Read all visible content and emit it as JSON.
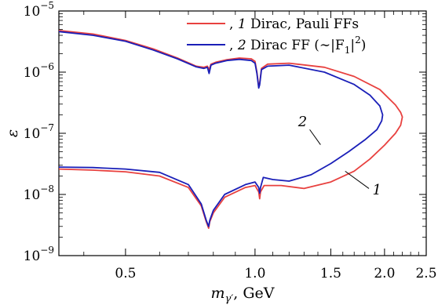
{
  "chart_data": {
    "type": "line",
    "xlabel_main": "m",
    "xlabel_sub": "γ′",
    "xlabel_unit": ", GeV",
    "ylabel": "ε",
    "xlim": [
      0.35,
      2.5
    ],
    "ylim_log10": [
      -9,
      -5
    ],
    "x_scale": "log",
    "y_scale": "log",
    "x_ticks": [
      {
        "value": 0.5,
        "label": "0.5"
      },
      {
        "value": 1.0,
        "label": "1.0"
      },
      {
        "value": 1.5,
        "label": "1.5"
      },
      {
        "value": 2.0,
        "label": "2.0"
      },
      {
        "value": 2.5,
        "label": "2.5"
      }
    ],
    "y_ticks": [
      {
        "exp": -9,
        "base": "10",
        "sup": "−9"
      },
      {
        "exp": -8,
        "base": "10",
        "sup": "−8"
      },
      {
        "exp": -7,
        "base": "10",
        "sup": "−7"
      },
      {
        "exp": -6,
        "base": "10",
        "sup": "−6"
      },
      {
        "exp": -5,
        "base": "10",
        "sup": "−5"
      }
    ],
    "legend": [
      {
        "num": "1",
        "text": " Dirac, Pauli FFs",
        "color": "#e8413f"
      },
      {
        "num": "2",
        "text": " Dirac FF (∼|F",
        "sub": "1",
        "tail": "|",
        "sup": "2",
        "close": ")",
        "color": "#1a1fb8"
      }
    ],
    "annotations": [
      {
        "label": "2",
        "x": 1.29,
        "y": 1.3e-07
      },
      {
        "label": "1",
        "x": 1.92,
        "y": 1e-08
      }
    ],
    "series": [
      {
        "name": "1",
        "color": "#e8413f",
        "x": [
          0.35,
          0.42,
          0.5,
          0.58,
          0.66,
          0.73,
          0.76,
          0.775,
          0.782,
          0.79,
          0.81,
          0.86,
          0.92,
          0.98,
          1.0,
          1.01,
          1.02,
          1.025,
          1.035,
          1.07,
          1.2,
          1.45,
          1.7,
          1.95,
          2.12,
          2.18,
          2.2,
          2.18,
          2.12,
          2.0,
          1.85,
          1.7,
          1.5,
          1.3,
          1.15,
          1.05,
          1.03,
          1.025,
          1.02,
          1.0,
          0.95,
          0.85,
          0.8,
          0.785,
          0.78,
          0.77,
          0.75,
          0.7,
          0.6,
          0.5,
          0.42,
          0.35
        ],
        "y": [
          4.8e-06,
          4.2e-06,
          3.3e-06,
          2.4e-06,
          1.7e-06,
          1.25e-06,
          1.2e-06,
          1.25e-06,
          1.1e-06,
          1.35e-06,
          1.45e-06,
          1.6e-06,
          1.7e-06,
          1.65e-06,
          1.5e-06,
          1e-06,
          5.8e-07,
          6.5e-07,
          1.15e-06,
          1.35e-06,
          1.4e-06,
          1.2e-06,
          8.5e-07,
          5.2e-07,
          2.9e-07,
          2.2e-07,
          1.85e-07,
          1.35e-07,
          1e-07,
          6.4e-08,
          3.8e-08,
          2.4e-08,
          1.6e-08,
          1.25e-08,
          1.4e-08,
          1.4e-08,
          1.1e-08,
          8.5e-09,
          1.1e-08,
          1.4e-08,
          1.3e-08,
          9e-09,
          5e-09,
          3.6e-09,
          2.8e-09,
          3.6e-09,
          6.5e-09,
          1.3e-08,
          2e-08,
          2.35e-08,
          2.5e-08,
          2.6e-08
        ]
      },
      {
        "name": "2",
        "color": "#1a1fb8",
        "x": [
          0.35,
          0.42,
          0.5,
          0.58,
          0.66,
          0.73,
          0.76,
          0.775,
          0.782,
          0.79,
          0.81,
          0.86,
          0.92,
          0.98,
          1.0,
          1.01,
          1.02,
          1.025,
          1.035,
          1.07,
          1.2,
          1.45,
          1.7,
          1.85,
          1.95,
          1.98,
          1.97,
          1.92,
          1.8,
          1.65,
          1.5,
          1.35,
          1.2,
          1.1,
          1.045,
          1.03,
          1.025,
          1.02,
          1.0,
          0.95,
          0.85,
          0.8,
          0.785,
          0.78,
          0.77,
          0.75,
          0.7,
          0.6,
          0.5,
          0.42,
          0.35
        ],
        "y": [
          4.6e-06,
          4e-06,
          3.2e-06,
          2.3e-06,
          1.65e-06,
          1.22e-06,
          1.15e-06,
          1.2e-06,
          9.5e-07,
          1.3e-06,
          1.4e-06,
          1.55e-06,
          1.62e-06,
          1.55e-06,
          1.4e-06,
          9.5e-07,
          5.5e-07,
          6.2e-07,
          1.1e-06,
          1.25e-06,
          1.3e-06,
          1e-06,
          6.3e-07,
          4.2e-07,
          2.8e-07,
          2e-07,
          1.6e-07,
          1.15e-07,
          7.8e-08,
          5e-08,
          3.2e-08,
          2.1e-08,
          1.65e-08,
          1.75e-08,
          1.9e-08,
          1.3e-08,
          1.05e-08,
          1.3e-08,
          1.6e-08,
          1.45e-08,
          1e-08,
          5.5e-09,
          3.8e-09,
          3e-09,
          3.8e-09,
          7e-09,
          1.45e-08,
          2.3e-08,
          2.6e-08,
          2.75e-08,
          2.8e-08
        ]
      }
    ]
  }
}
